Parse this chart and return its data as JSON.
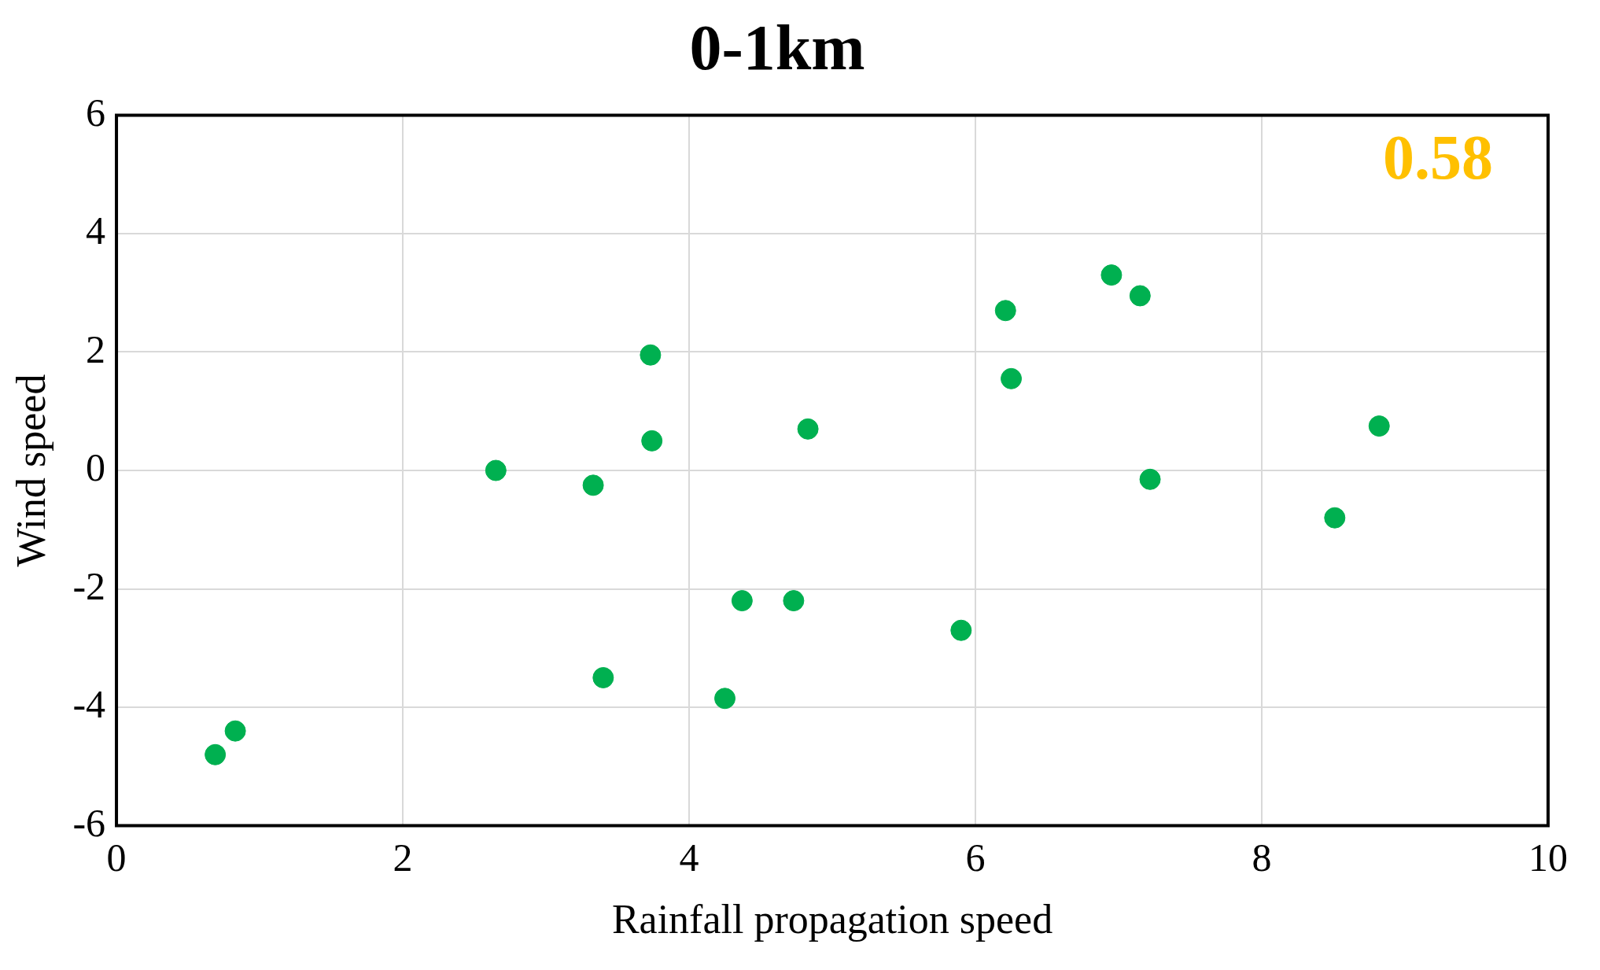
{
  "chart_data": {
    "type": "scatter",
    "title": "0-1km",
    "xlabel": "Rainfall propagation speed",
    "ylabel": "Wind speed",
    "annotations": [
      "0.58"
    ],
    "x": [
      0.69,
      0.83,
      2.65,
      3.33,
      3.4,
      3.73,
      3.74,
      4.25,
      4.37,
      4.73,
      4.83,
      5.9,
      6.21,
      6.25,
      6.95,
      7.15,
      7.22,
      8.51,
      8.82
    ],
    "series": [
      {
        "color": "#00b050",
        "values": [
          -4.8,
          -4.4,
          0,
          -0.25,
          -3.5,
          1.95,
          0.5,
          -3.85,
          -2.2,
          -2.2,
          0.7,
          -2.7,
          2.7,
          1.55,
          3.3,
          2.95,
          -0.15,
          -0.8,
          0.75
        ]
      }
    ],
    "xlim": [
      0,
      10
    ],
    "xticks": [
      0,
      2,
      4,
      6,
      8,
      10
    ],
    "ylim": [
      -6,
      6
    ],
    "yticks": [
      -6,
      -4,
      -2,
      0,
      2,
      4,
      6
    ],
    "grid": true,
    "legend": false,
    "marker": "circle"
  }
}
